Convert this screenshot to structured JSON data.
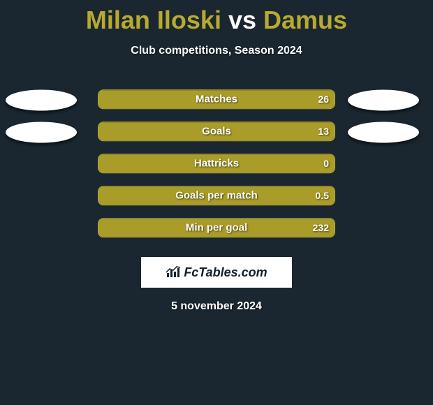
{
  "title": {
    "player1": "Milan Iloski",
    "vs": "vs",
    "player2": "Damus"
  },
  "subtitle": "Club competitions, Season 2024",
  "colors": {
    "background": "#1a2730",
    "accent": "#b7aa2f",
    "fill": "#a99c28",
    "oval": "#ffffff",
    "text": "#ffffff"
  },
  "stats": [
    {
      "label": "Matches",
      "value": "26",
      "fill_pct": 100,
      "oval_left": true,
      "oval_right": true
    },
    {
      "label": "Goals",
      "value": "13",
      "fill_pct": 100,
      "oval_left": true,
      "oval_right": true
    },
    {
      "label": "Hattricks",
      "value": "0",
      "fill_pct": 100,
      "oval_left": false,
      "oval_right": false
    },
    {
      "label": "Goals per match",
      "value": "0.5",
      "fill_pct": 100,
      "oval_left": false,
      "oval_right": false
    },
    {
      "label": "Min per goal",
      "value": "232",
      "fill_pct": 100,
      "oval_left": false,
      "oval_right": false
    }
  ],
  "logo": "FcTables.com",
  "date": "5 november 2024"
}
